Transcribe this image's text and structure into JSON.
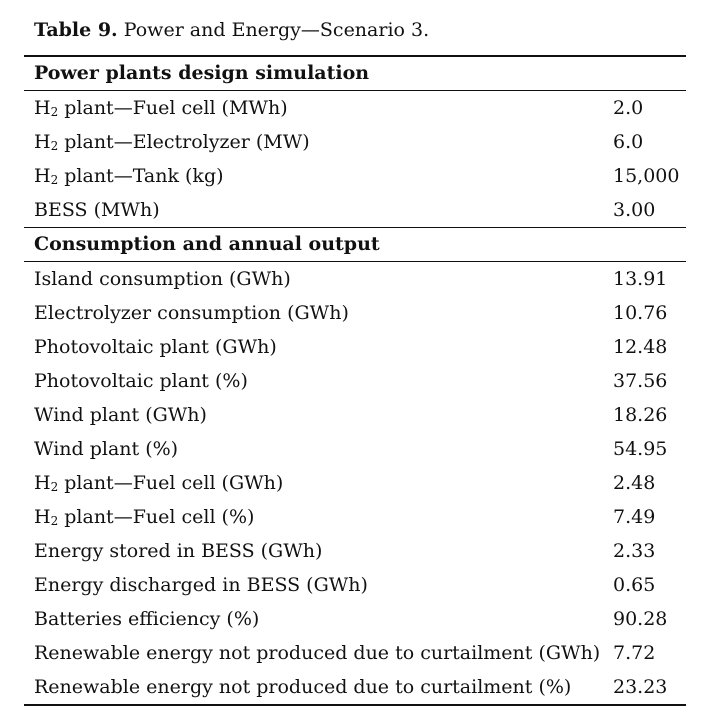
{
  "caption": {
    "label": "Table 9.",
    "text": " Power and Energy—Scenario 3."
  },
  "sections": [
    {
      "heading": "Power plants design simulation",
      "rows": [
        {
          "h2": true,
          "label": " plant—Fuel cell (MWh)",
          "value": "2.0"
        },
        {
          "h2": true,
          "label": " plant—Electrolyzer (MW)",
          "value": "6.0"
        },
        {
          "h2": true,
          "label": " plant—Tank (kg)",
          "value": "15,000"
        },
        {
          "h2": false,
          "label": "BESS (MWh)",
          "value": "3.00"
        }
      ]
    },
    {
      "heading": "Consumption and annual output",
      "rows": [
        {
          "h2": false,
          "label": "Island consumption (GWh)",
          "value": "13.91"
        },
        {
          "h2": false,
          "label": "Electrolyzer consumption (GWh)",
          "value": "10.76"
        },
        {
          "h2": false,
          "label": "Photovoltaic plant (GWh)",
          "value": "12.48"
        },
        {
          "h2": false,
          "label": "Photovoltaic plant (%)",
          "value": "37.56"
        },
        {
          "h2": false,
          "label": "Wind plant (GWh)",
          "value": "18.26"
        },
        {
          "h2": false,
          "label": "Wind plant (%)",
          "value": "54.95"
        },
        {
          "h2": true,
          "label": " plant—Fuel cell (GWh)",
          "value": "2.48"
        },
        {
          "h2": true,
          "label": " plant—Fuel cell (%)",
          "value": "7.49"
        },
        {
          "h2": false,
          "label": "Energy stored in BESS (GWh)",
          "value": "2.33"
        },
        {
          "h2": false,
          "label": "Energy discharged in BESS (GWh)",
          "value": "0.65"
        },
        {
          "h2": false,
          "label": "Batteries efficiency (%)",
          "value": "90.28"
        },
        {
          "h2": false,
          "label": "Renewable energy not produced due to curtailment (GWh)",
          "value": "7.72"
        },
        {
          "h2": false,
          "label": "Renewable energy not produced due to curtailment (%)",
          "value": "23.23"
        }
      ]
    }
  ],
  "h2_symbol": {
    "base": "H",
    "sub": "2"
  }
}
